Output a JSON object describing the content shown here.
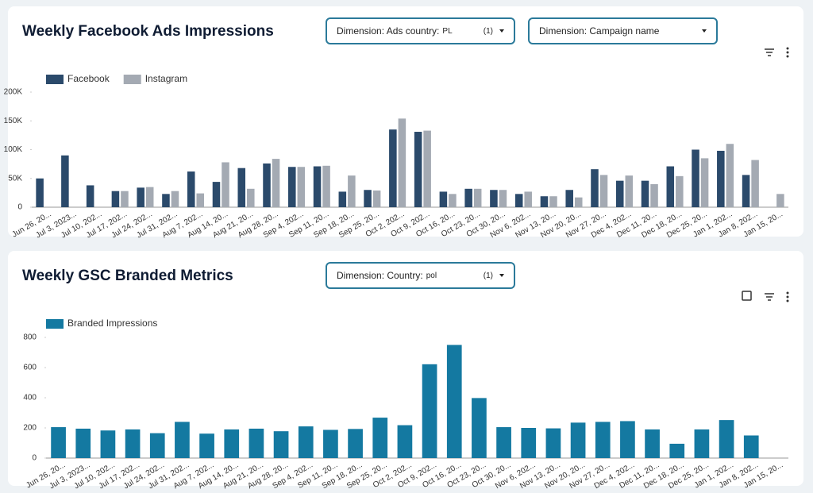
{
  "chart_data": [
    {
      "type": "bar",
      "title": "Weekly Facebook Ads Impressions",
      "categories": [
        "Jun 26, 20...",
        "Jul 3, 2023...",
        "Jul 10, 202...",
        "Jul 17, 202...",
        "Jul 24, 202...",
        "Jul 31, 202...",
        "Aug 7, 202...",
        "Aug 14, 20...",
        "Aug 21, 20...",
        "Aug 28, 20...",
        "Sep 4, 202...",
        "Sep 11, 20...",
        "Sep 18, 20...",
        "Sep 25, 20...",
        "Oct 2, 202...",
        "Oct 9, 202...",
        "Oct 16, 20...",
        "Oct 23, 20...",
        "Oct 30, 20...",
        "Nov 6, 202...",
        "Nov 13, 20...",
        "Nov 20, 20...",
        "Nov 27, 20...",
        "Dec 4, 202...",
        "Dec 11, 20...",
        "Dec 18, 20...",
        "Dec 25, 20...",
        "Jan 1, 202...",
        "Jan 8, 202...",
        "Jan 15, 20..."
      ],
      "series": [
        {
          "name": "Facebook",
          "color": "#2b4a6b",
          "values": [
            50000,
            90000,
            38000,
            28000,
            34000,
            23000,
            62000,
            44000,
            68000,
            76000,
            70000,
            71000,
            27000,
            30000,
            135000,
            131000,
            27000,
            32000,
            30000,
            23000,
            19000,
            30000,
            66000,
            46000,
            46000,
            71000,
            100000,
            98000,
            56000,
            null
          ]
        },
        {
          "name": "Instagram",
          "color": "#a4aab3",
          "values": [
            null,
            null,
            null,
            28000,
            35000,
            28000,
            24000,
            78000,
            32000,
            84000,
            70000,
            72000,
            55000,
            29000,
            154000,
            133000,
            23000,
            32000,
            30000,
            27000,
            19000,
            17000,
            56000,
            55000,
            40000,
            54000,
            85000,
            110000,
            82000,
            23000
          ]
        }
      ],
      "ylim": [
        0,
        200000
      ],
      "yticks": [
        {
          "value": 0,
          "label": "0"
        },
        {
          "value": 50000,
          "label": "50K"
        },
        {
          "value": 100000,
          "label": "100K"
        },
        {
          "value": 150000,
          "label": "150K"
        },
        {
          "value": 200000,
          "label": "200K"
        }
      ],
      "legend": "top-left"
    },
    {
      "type": "bar",
      "title": "Weekly GSC Branded Metrics",
      "categories": [
        "Jun 26, 20...",
        "Jul 3, 2023...",
        "Jul 10, 202...",
        "Jul 17, 202...",
        "Jul 24, 202...",
        "Jul 31, 202...",
        "Aug 7, 202...",
        "Aug 14, 20...",
        "Aug 21, 20...",
        "Aug 28, 20...",
        "Sep 4, 202...",
        "Sep 11, 20...",
        "Sep 18, 20...",
        "Sep 25, 20...",
        "Oct 2, 202...",
        "Oct 9, 202...",
        "Oct 16, 20...",
        "Oct 23, 20...",
        "Oct 30, 20...",
        "Nov 6, 202...",
        "Nov 13, 20...",
        "Nov 20, 20...",
        "Nov 27, 20...",
        "Dec 4, 202...",
        "Dec 11, 20...",
        "Dec 18, 20...",
        "Dec 25, 20...",
        "Jan 1, 202...",
        "Jan 8, 202...",
        "Jan 15, 20..."
      ],
      "series": [
        {
          "name": "Branded Impressions",
          "color": "#1479a1",
          "values": [
            205,
            195,
            183,
            190,
            165,
            240,
            162,
            190,
            195,
            178,
            210,
            187,
            193,
            268,
            218,
            622,
            750,
            398,
            205,
            200,
            197,
            235,
            240,
            245,
            190,
            95,
            190,
            252,
            150,
            null
          ]
        }
      ],
      "ylim": [
        0,
        800
      ],
      "yticks": [
        0,
        200,
        400,
        600,
        800
      ],
      "legend": "top-left"
    }
  ],
  "controls": [
    [
      {
        "label": "Dimension: Ads country:",
        "value": "PL",
        "count": "(1)"
      },
      {
        "label": "Dimension: Campaign name"
      }
    ],
    [
      {
        "label": "Dimension: Country:",
        "value": "pol",
        "count": "(1)"
      }
    ]
  ]
}
